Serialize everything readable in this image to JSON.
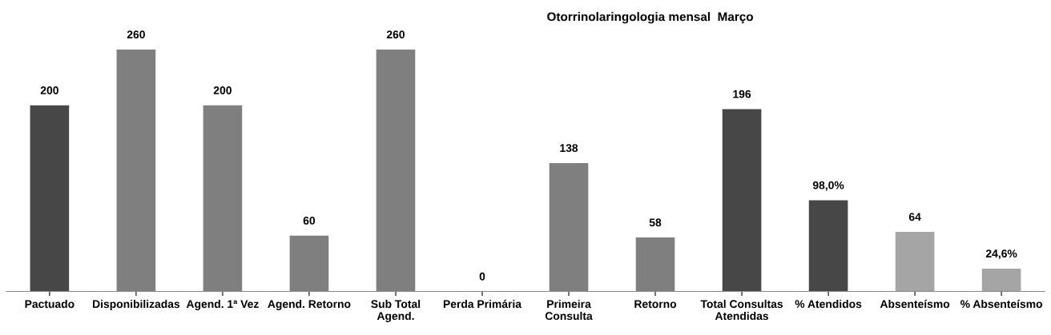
{
  "chart_data": {
    "type": "bar",
    "title": "Otorrinolaringologia mensal  Março",
    "categories": [
      "Pactuado",
      "Disponibilizadas",
      "Agend. 1ª Vez",
      "Agend. Retorno",
      "Sub Total\nAgend.",
      "Perda Primária",
      "Primeira\nConsulta",
      "Retorno",
      "Total Consultas\nAtendidas",
      "% Atendidos",
      "Absenteísmo",
      "% Absenteísmo"
    ],
    "values": [
      200,
      260,
      200,
      60,
      260,
      0,
      138,
      58,
      196,
      98.0,
      64,
      24.6
    ],
    "value_labels": [
      "200",
      "260",
      "200",
      "60",
      "260",
      "0",
      "138",
      "58",
      "196",
      "98,0%",
      "64",
      "24,6%"
    ],
    "colors": [
      "#474747",
      "#7f7f7f",
      "#7f7f7f",
      "#7f7f7f",
      "#7f7f7f",
      "#7f7f7f",
      "#7f7f7f",
      "#7f7f7f",
      "#474747",
      "#474747",
      "#a5a5a5",
      "#a5a5a5"
    ],
    "tick_labels": "x",
    "grid": false,
    "legend": false
  }
}
